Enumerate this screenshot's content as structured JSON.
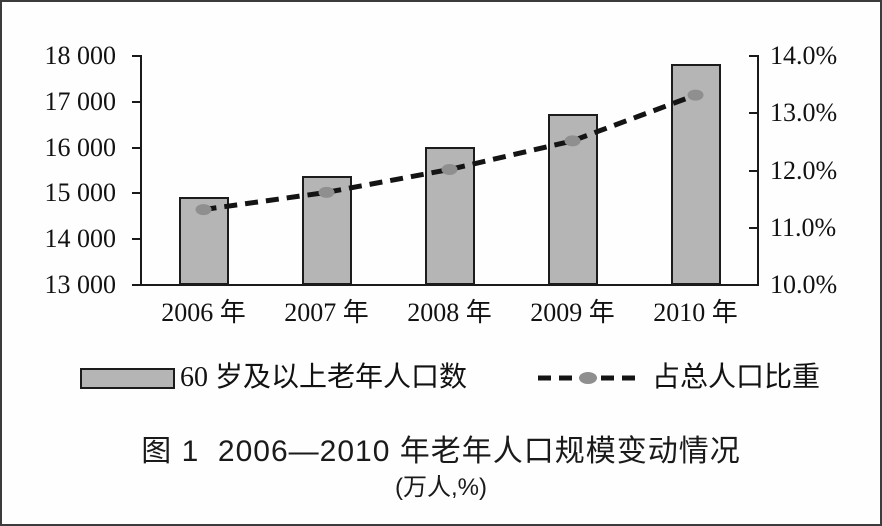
{
  "chart_data": {
    "type": "bar",
    "categories": [
      "2006 年",
      "2007 年",
      "2008 年",
      "2009 年",
      "2010 年"
    ],
    "series": [
      {
        "name": "60 岁及以上老年人口数",
        "type": "bar",
        "axis": "left",
        "values": [
          14900,
          15350,
          16000,
          16720,
          17800
        ]
      },
      {
        "name": "占总人口比重",
        "type": "line",
        "axis": "right",
        "values": [
          11.3,
          11.6,
          12.0,
          12.5,
          13.3
        ]
      }
    ],
    "left_axis": {
      "min": 13000,
      "max": 18000,
      "step": 1000,
      "tick_labels": [
        "13 000",
        "14 000",
        "15 000",
        "16 000",
        "17 000",
        "18 000"
      ]
    },
    "right_axis": {
      "min": 10.0,
      "max": 14.0,
      "step": 1.0,
      "tick_labels": [
        "10.0%",
        "11.0%",
        "12.0%",
        "13.0%",
        "14.0%"
      ]
    },
    "grid": false,
    "legend_position": "bottom",
    "title": "图 1  2006—2010 年老年人口规模变动情况",
    "subtitle": "(万人,%)"
  },
  "legend": {
    "bar_label": "60 岁及以上老年人口数",
    "line_label": "占总人口比重"
  },
  "caption": {
    "line1": "图 1  2006—2010 年老年人口规模变动情况",
    "line2": "(万人,%)"
  },
  "colors": {
    "bar_fill": "#b5b5b5",
    "bar_border": "#1c1c1c",
    "marker_fill": "#8f8f8f",
    "line_color": "#141414",
    "axis_color": "#1a1a1a",
    "text_color": "#121212",
    "frame_border": "#3c3c3c"
  }
}
